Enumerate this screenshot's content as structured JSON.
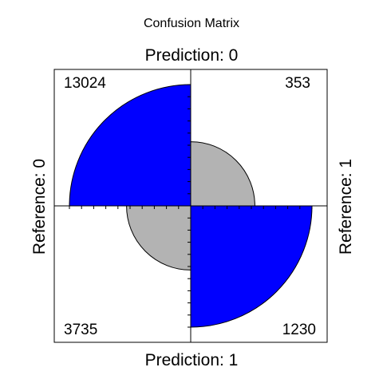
{
  "chart_data": {
    "type": "fourfold",
    "title": "Confusion Matrix",
    "column_labels": [
      "Prediction: 0",
      "Prediction: 1"
    ],
    "row_labels": [
      "Reference: 0",
      "Reference: 1"
    ],
    "cells": [
      {
        "prediction": "0",
        "reference": "0",
        "count": "13024",
        "value": 13024
      },
      {
        "prediction": "0",
        "reference": "1",
        "count": "353",
        "value": 353
      },
      {
        "prediction": "1",
        "reference": "0",
        "count": "3735",
        "value": 3735
      },
      {
        "prediction": "1",
        "reference": "1",
        "count": "1230",
        "value": 1230
      }
    ],
    "standardized_fraction": {
      "pred0_ref0": 1.0,
      "pred0_ref1": 0.28,
      "pred1_ref0": 0.28,
      "pred1_ref1": 1.0
    },
    "colors": {
      "diagonal": "#0000ff",
      "off_diagonal": "#b3b3b3",
      "frame": "#000000"
    }
  }
}
